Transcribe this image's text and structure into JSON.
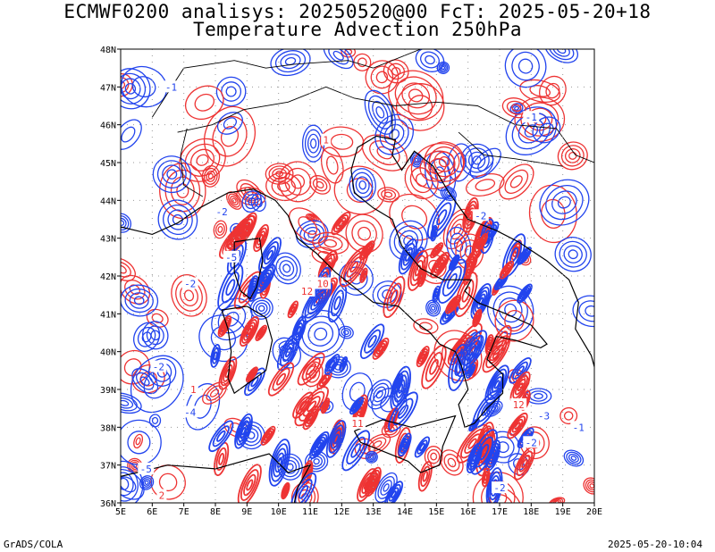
{
  "title": {
    "line1": "ECMWF0200 analisys: 20250520@00 FcT: 2025-05-20+18",
    "line2": "Temperature Advection 250hPa"
  },
  "axes": {
    "lon_labels": [
      "5E",
      "6E",
      "7E",
      "8E",
      "9E",
      "10E",
      "11E",
      "12E",
      "13E",
      "14E",
      "15E",
      "16E",
      "17E",
      "18E",
      "19E",
      "20E"
    ],
    "lat_labels": [
      "36N",
      "37N",
      "38N",
      "39N",
      "40N",
      "41N",
      "42N",
      "43N",
      "44N",
      "45N",
      "46N",
      "47N",
      "48N"
    ],
    "lon_range": [
      5,
      20
    ],
    "lat_range": [
      36,
      48
    ],
    "grid": "dotted"
  },
  "colors": {
    "positive_contours": "#ee3333",
    "negative_contours": "#2244ee",
    "coastline": "#000000",
    "grid": "#999999"
  },
  "contour_labels": [
    {
      "text": "-1",
      "lon": 6.6,
      "lat": 47.0
    },
    {
      "text": "1",
      "lon": 11.5,
      "lat": 45.6
    },
    {
      "text": "-2",
      "lon": 8.2,
      "lat": 43.7
    },
    {
      "text": "-5",
      "lon": 8.5,
      "lat": 42.5
    },
    {
      "text": "-2",
      "lon": 7.2,
      "lat": 41.8
    },
    {
      "text": "12",
      "lon": 10.9,
      "lat": 41.6
    },
    {
      "text": "10",
      "lon": 11.4,
      "lat": 41.8
    },
    {
      "text": "-2",
      "lon": 16.4,
      "lat": 43.6
    },
    {
      "text": "-2",
      "lon": 6.2,
      "lat": 39.6
    },
    {
      "text": "1",
      "lon": 7.3,
      "lat": 39.0
    },
    {
      "text": "-4",
      "lon": 7.2,
      "lat": 38.4
    },
    {
      "text": "-5",
      "lon": 5.8,
      "lat": 36.9
    },
    {
      "text": "2",
      "lon": 6.3,
      "lat": 36.2
    },
    {
      "text": "12",
      "lon": 17.6,
      "lat": 38.6
    },
    {
      "text": "-3",
      "lon": 18.4,
      "lat": 38.3
    },
    {
      "text": "-2",
      "lon": 18.0,
      "lat": 37.6
    },
    {
      "text": "-1",
      "lon": 19.5,
      "lat": 38.0
    },
    {
      "text": "-2",
      "lon": 17.0,
      "lat": 36.4
    },
    {
      "text": "11",
      "lon": 12.5,
      "lat": 38.1
    },
    {
      "text": "-1",
      "lon": 18.0,
      "lat": 46.2
    }
  ],
  "footer": {
    "left": "GrADS/COLA",
    "right": "2025-05-20-10:04"
  }
}
